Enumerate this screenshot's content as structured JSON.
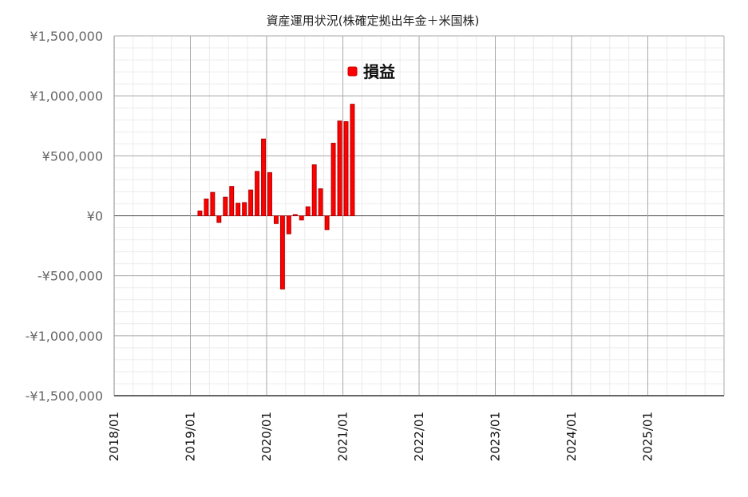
{
  "chart_data": {
    "type": "bar",
    "title": "資産運用状況(株確定拠出年金＋米国株)",
    "xlabel": "",
    "ylabel": "",
    "x_range": [
      "2018-01",
      "2025-12"
    ],
    "ylim": [
      -1500000,
      1500000
    ],
    "y_ticks": [
      1500000,
      1000000,
      500000,
      0,
      -500000,
      -1000000,
      -1500000
    ],
    "y_tick_labels": [
      "¥1,500,000",
      "¥1,000,000",
      "¥500,000",
      "¥0",
      "-¥500,000",
      "-¥1,000,000",
      "-¥1,500,000"
    ],
    "x_tick_labels": [
      "2018/01",
      "2019/01",
      "2020/01",
      "2021/01",
      "2022/01",
      "2023/01",
      "2024/01",
      "2025/01"
    ],
    "grid": true,
    "legend_position": "top-center",
    "color": "#ff0000",
    "series": [
      {
        "name": "損益",
        "x": [
          "2019-02",
          "2019-03",
          "2019-04",
          "2019-05",
          "2019-06",
          "2019-07",
          "2019-08",
          "2019-09",
          "2019-10",
          "2019-11",
          "2019-12",
          "2020-01",
          "2020-02",
          "2020-03",
          "2020-04",
          "2020-05",
          "2020-06",
          "2020-07",
          "2020-08",
          "2020-09",
          "2020-10",
          "2020-11",
          "2020-12",
          "2021-01",
          "2021-02"
        ],
        "values": [
          40000,
          140000,
          195000,
          -55000,
          155000,
          245000,
          105000,
          110000,
          215000,
          370000,
          640000,
          360000,
          -65000,
          -610000,
          -150000,
          10000,
          -35000,
          75000,
          425000,
          225000,
          -115000,
          605000,
          790000,
          785000,
          930000
        ]
      }
    ]
  }
}
